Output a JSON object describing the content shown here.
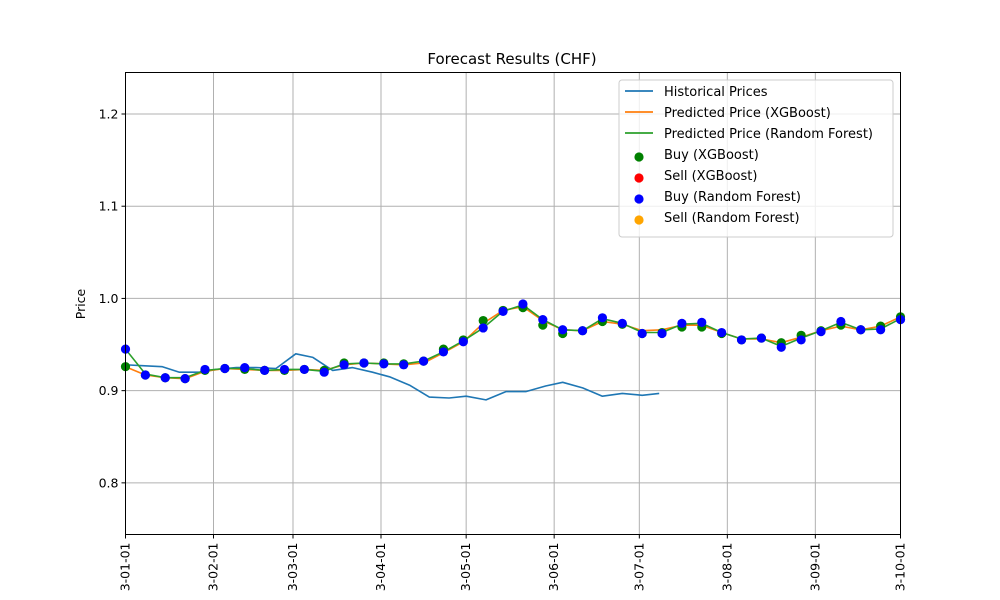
{
  "chart_data": {
    "type": "line",
    "title": "Forecast Results (CHF)",
    "xlabel": "",
    "ylabel": "Price",
    "ylim": [
      0.744,
      1.245
    ],
    "xlim": [
      "2023-01-01",
      "2023-10-01"
    ],
    "grid": true,
    "legend_position": "top-right",
    "x_ticks": [
      "2023-01-01",
      "2023-02-01",
      "2023-03-01",
      "2023-04-01",
      "2023-05-01",
      "2023-06-01",
      "2023-07-01",
      "2023-08-01",
      "2023-09-01",
      "2023-10-01"
    ],
    "x_tick_labels": [
      "3-01-01",
      "3-02-01",
      "3-03-01",
      "3-04-01",
      "3-05-01",
      "3-06-01",
      "3-07-01",
      "3-08-01",
      "3-09-01",
      "3-10-01"
    ],
    "y_ticks": [
      0.8,
      0.9,
      1.0,
      1.1,
      1.2
    ],
    "y_tick_labels": [
      "0.8",
      "0.9",
      "1.0",
      "1.1",
      "1.2"
    ],
    "lines": [
      {
        "name": "Historical Prices",
        "color": "#1f77b4",
        "x": [
          "2023-01-01",
          "2023-01-07",
          "2023-01-14",
          "2023-01-20",
          "2023-01-27",
          "2023-02-02",
          "2023-02-09",
          "2023-02-16",
          "2023-02-23",
          "2023-03-02",
          "2023-03-08",
          "2023-03-15",
          "2023-03-22",
          "2023-03-29",
          "2023-04-04",
          "2023-04-11",
          "2023-04-18",
          "2023-04-25",
          "2023-05-01",
          "2023-05-08",
          "2023-05-15",
          "2023-05-22",
          "2023-05-29",
          "2023-06-04",
          "2023-06-11",
          "2023-06-18",
          "2023-06-25",
          "2023-07-02",
          "2023-07-08"
        ],
        "y": [
          0.928,
          0.927,
          0.926,
          0.92,
          0.92,
          0.923,
          0.925,
          0.925,
          0.924,
          0.94,
          0.936,
          0.922,
          0.925,
          0.92,
          0.915,
          0.906,
          0.893,
          0.892,
          0.894,
          0.89,
          0.899,
          0.899,
          0.905,
          0.909,
          0.903,
          0.894,
          0.897,
          0.895,
          0.897
        ]
      },
      {
        "name": "Predicted Price (XGBoost)",
        "color": "#ff7f0e",
        "x": [
          "2023-01-01",
          "2023-01-08",
          "2023-01-15",
          "2023-01-22",
          "2023-01-29",
          "2023-02-05",
          "2023-02-12",
          "2023-02-19",
          "2023-02-26",
          "2023-03-05",
          "2023-03-12",
          "2023-03-19",
          "2023-03-26",
          "2023-04-02",
          "2023-04-09",
          "2023-04-16",
          "2023-04-23",
          "2023-04-30",
          "2023-05-07",
          "2023-05-14",
          "2023-05-21",
          "2023-05-28",
          "2023-06-04",
          "2023-06-11",
          "2023-06-18",
          "2023-06-25",
          "2023-07-02",
          "2023-07-09",
          "2023-07-16",
          "2023-07-23",
          "2023-07-30",
          "2023-08-06",
          "2023-08-13",
          "2023-08-20",
          "2023-08-27",
          "2023-09-03",
          "2023-09-10",
          "2023-09-17",
          "2023-09-24",
          "2023-10-01"
        ],
        "y": [
          0.926,
          0.917,
          0.914,
          0.913,
          0.921,
          0.924,
          0.923,
          0.922,
          0.922,
          0.923,
          0.922,
          0.928,
          0.93,
          0.929,
          0.928,
          0.93,
          0.941,
          0.953,
          0.973,
          0.987,
          0.991,
          0.976,
          0.966,
          0.965,
          0.975,
          0.972,
          0.965,
          0.966,
          0.971,
          0.971,
          0.963,
          0.956,
          0.956,
          0.952,
          0.958,
          0.965,
          0.97,
          0.966,
          0.97,
          0.98
        ]
      },
      {
        "name": "Predicted Price (Random Forest)",
        "color": "#2ca02c",
        "x": [
          "2023-01-01",
          "2023-01-08",
          "2023-01-15",
          "2023-01-22",
          "2023-01-29",
          "2023-02-05",
          "2023-02-12",
          "2023-02-19",
          "2023-02-26",
          "2023-03-05",
          "2023-03-12",
          "2023-03-19",
          "2023-03-26",
          "2023-04-02",
          "2023-04-09",
          "2023-04-16",
          "2023-04-23",
          "2023-04-30",
          "2023-05-07",
          "2023-05-14",
          "2023-05-21",
          "2023-05-28",
          "2023-06-04",
          "2023-06-11",
          "2023-06-18",
          "2023-06-25",
          "2023-07-02",
          "2023-07-09",
          "2023-07-16",
          "2023-07-23",
          "2023-07-30",
          "2023-08-06",
          "2023-08-13",
          "2023-08-20",
          "2023-08-27",
          "2023-09-03",
          "2023-09-10",
          "2023-09-17",
          "2023-09-24",
          "2023-10-01"
        ],
        "y": [
          0.945,
          0.918,
          0.914,
          0.914,
          0.922,
          0.924,
          0.924,
          0.922,
          0.923,
          0.923,
          0.921,
          0.929,
          0.93,
          0.929,
          0.929,
          0.932,
          0.942,
          0.954,
          0.968,
          0.986,
          0.993,
          0.977,
          0.966,
          0.965,
          0.978,
          0.973,
          0.963,
          0.963,
          0.972,
          0.973,
          0.963,
          0.956,
          0.957,
          0.948,
          0.957,
          0.965,
          0.974,
          0.966,
          0.967,
          0.978
        ]
      }
    ],
    "scatter": [
      {
        "name": "Buy (XGBoost)",
        "color": "#008000",
        "x": [
          "2023-01-01",
          "2023-01-08",
          "2023-01-15",
          "2023-01-22",
          "2023-01-29",
          "2023-02-05",
          "2023-02-12",
          "2023-02-19",
          "2023-02-26",
          "2023-03-05",
          "2023-03-12",
          "2023-03-19",
          "2023-03-26",
          "2023-04-02",
          "2023-04-09",
          "2023-04-16",
          "2023-04-23",
          "2023-04-30",
          "2023-05-07",
          "2023-05-14",
          "2023-05-21",
          "2023-05-28",
          "2023-06-04",
          "2023-06-11",
          "2023-06-18",
          "2023-06-25",
          "2023-07-02",
          "2023-07-09",
          "2023-07-16",
          "2023-07-23",
          "2023-07-30",
          "2023-08-06",
          "2023-08-13",
          "2023-08-20",
          "2023-08-27",
          "2023-09-03",
          "2023-09-10",
          "2023-09-17",
          "2023-09-24",
          "2023-10-01"
        ],
        "y": [
          0.926,
          0.917,
          0.914,
          0.913,
          0.922,
          0.924,
          0.923,
          0.922,
          0.922,
          0.923,
          0.922,
          0.93,
          0.93,
          0.93,
          0.929,
          0.932,
          0.945,
          0.955,
          0.976,
          0.987,
          0.99,
          0.971,
          0.962,
          0.965,
          0.975,
          0.972,
          0.962,
          0.963,
          0.969,
          0.969,
          0.962,
          0.955,
          0.957,
          0.952,
          0.96,
          0.965,
          0.971,
          0.966,
          0.97,
          0.98
        ]
      },
      {
        "name": "Sell (XGBoost)",
        "color": "#ff0000",
        "x": [],
        "y": []
      },
      {
        "name": "Buy (Random Forest)",
        "color": "#0000ff",
        "x": [
          "2023-01-01",
          "2023-01-08",
          "2023-01-15",
          "2023-01-22",
          "2023-01-29",
          "2023-02-05",
          "2023-02-12",
          "2023-02-19",
          "2023-02-26",
          "2023-03-05",
          "2023-03-12",
          "2023-03-19",
          "2023-03-26",
          "2023-04-02",
          "2023-04-09",
          "2023-04-16",
          "2023-04-23",
          "2023-04-30",
          "2023-05-07",
          "2023-05-14",
          "2023-05-21",
          "2023-05-28",
          "2023-06-04",
          "2023-06-11",
          "2023-06-18",
          "2023-06-25",
          "2023-07-02",
          "2023-07-09",
          "2023-07-16",
          "2023-07-23",
          "2023-07-30",
          "2023-08-06",
          "2023-08-13",
          "2023-08-20",
          "2023-08-27",
          "2023-09-03",
          "2023-09-10",
          "2023-09-17",
          "2023-09-24",
          "2023-10-01"
        ],
        "y": [
          0.945,
          0.917,
          0.914,
          0.913,
          0.923,
          0.924,
          0.925,
          0.922,
          0.923,
          0.923,
          0.92,
          0.928,
          0.93,
          0.929,
          0.928,
          0.932,
          0.942,
          0.953,
          0.968,
          0.986,
          0.994,
          0.977,
          0.966,
          0.965,
          0.979,
          0.973,
          0.962,
          0.962,
          0.973,
          0.974,
          0.963,
          0.955,
          0.957,
          0.947,
          0.955,
          0.964,
          0.975,
          0.966,
          0.966,
          0.977
        ]
      },
      {
        "name": "Sell (Random Forest)",
        "color": "#ffa500",
        "x": [],
        "y": []
      }
    ]
  }
}
